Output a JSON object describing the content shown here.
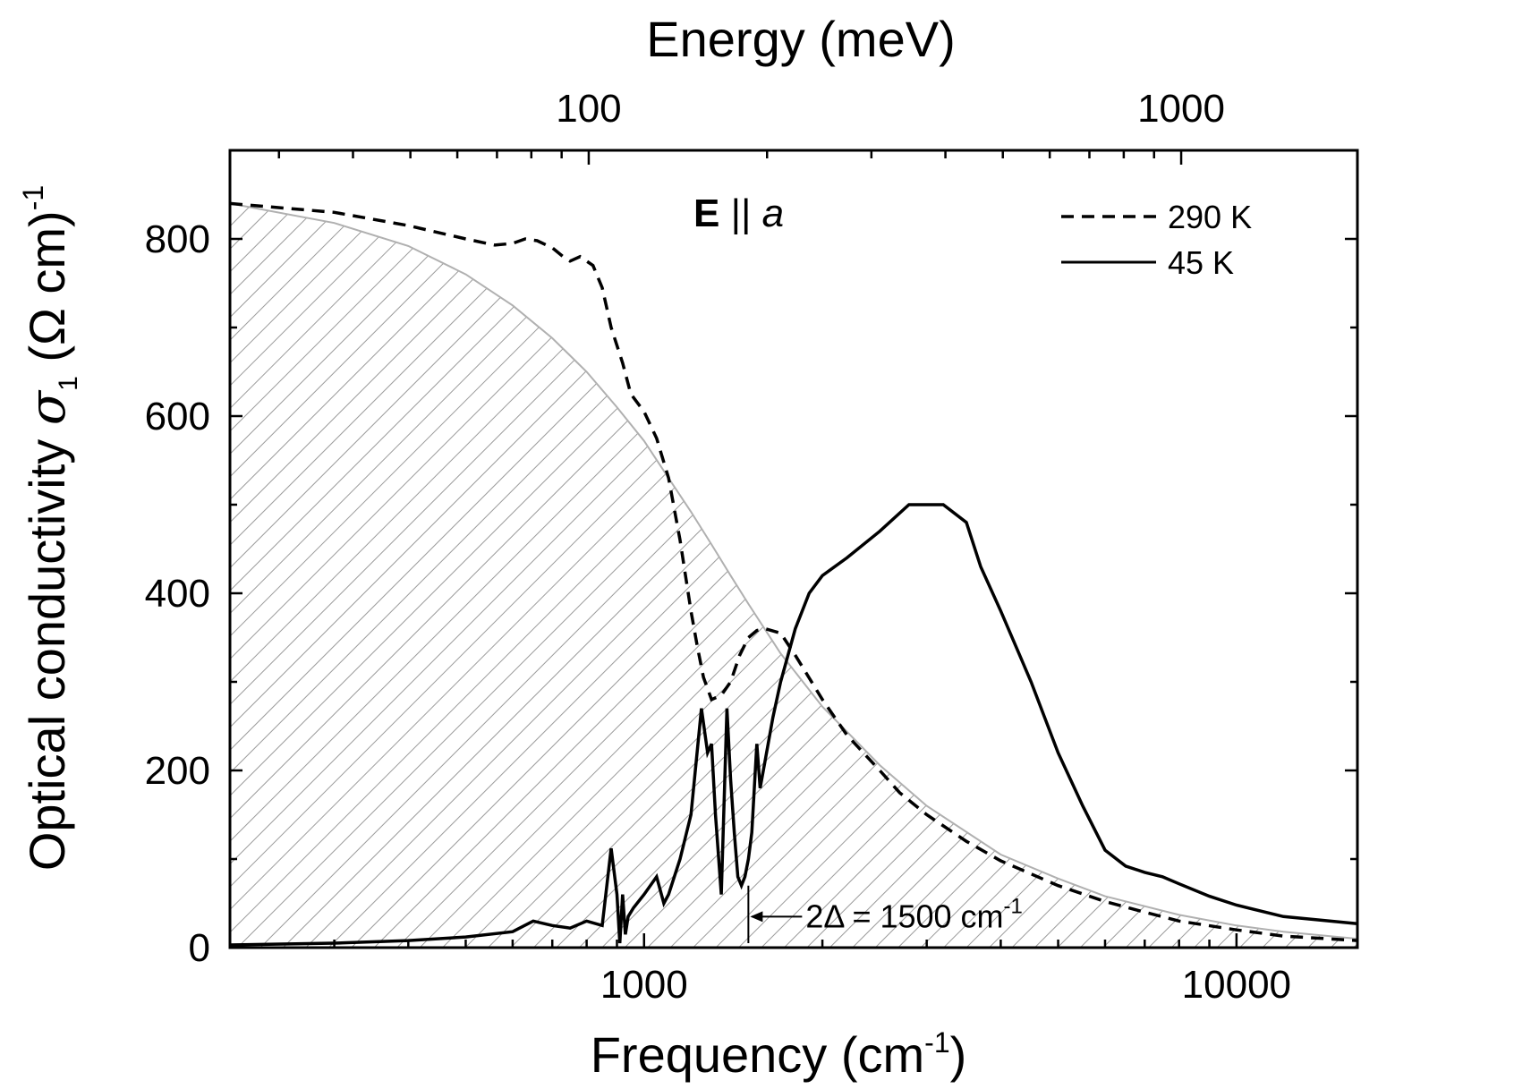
{
  "chart_data": {
    "type": "line",
    "title": "",
    "xlabel": "Frequency (cm",
    "xlabel_sup": "-1",
    "xlabel_close": ")",
    "x2label": "Energy (meV)",
    "ylabel": "Optical conductivity",
    "ylabel_symbol": "σ",
    "ylabel_sub": "1",
    "ylabel_units": "(Ω cm)",
    "ylabel_sup": "-1",
    "xscale": "log",
    "x2scale": "log",
    "xlim": [
      200,
      16000
    ],
    "ylim": [
      0,
      900
    ],
    "grid": false,
    "x_ticks": [
      {
        "value": 1000,
        "label": "1000"
      },
      {
        "value": 10000,
        "label": "10000"
      }
    ],
    "x2_ticks": [
      {
        "value": 100,
        "label": "100"
      },
      {
        "value": 1000,
        "label": "1000"
      }
    ],
    "y_ticks": [
      {
        "value": 0,
        "label": "0"
      },
      {
        "value": 200,
        "label": "200"
      },
      {
        "value": 400,
        "label": "400"
      },
      {
        "value": 600,
        "label": "600"
      },
      {
        "value": 800,
        "label": "800"
      }
    ],
    "panel_label": {
      "bold": "E",
      "sep": " || ",
      "italic": "a"
    },
    "legend": {
      "placement": "top-right",
      "entries": [
        {
          "label": "290 K",
          "style": "dashed"
        },
        {
          "label": "45 K",
          "style": "solid"
        }
      ]
    },
    "annotation": {
      "text": "2Δ = 1500 cm",
      "sup": "-1",
      "x": 1500
    },
    "series": [
      {
        "name": "290 K",
        "style": "dashed",
        "x": [
          200,
          300,
          400,
          500,
          560,
          600,
          630,
          660,
          700,
          730,
          750,
          780,
          820,
          850,
          880,
          920,
          950,
          1000,
          1050,
          1100,
          1150,
          1200,
          1230,
          1260,
          1300,
          1350,
          1400,
          1450,
          1500,
          1550,
          1600,
          1700,
          1800,
          2000,
          2200,
          2500,
          2700,
          3000,
          3500,
          4000,
          5000,
          6000,
          7000,
          8000,
          10000,
          12000,
          16000
        ],
        "values": [
          840,
          830,
          815,
          800,
          793,
          795,
          800,
          798,
          790,
          780,
          775,
          780,
          770,
          745,
          700,
          660,
          625,
          605,
          575,
          530,
          460,
          380,
          340,
          305,
          280,
          285,
          300,
          330,
          350,
          358,
          360,
          355,
          330,
          280,
          240,
          200,
          175,
          150,
          120,
          98,
          70,
          52,
          40,
          30,
          20,
          13,
          8
        ]
      },
      {
        "name": "45 K",
        "style": "solid",
        "x": [
          200,
          300,
          400,
          500,
          600,
          650,
          700,
          750,
          800,
          850,
          880,
          900,
          910,
          920,
          930,
          940,
          950,
          960,
          1000,
          1050,
          1080,
          1100,
          1150,
          1200,
          1250,
          1280,
          1300,
          1320,
          1350,
          1380,
          1400,
          1420,
          1440,
          1460,
          1480,
          1500,
          1520,
          1550,
          1570,
          1600,
          1650,
          1700,
          1800,
          1900,
          2000,
          2200,
          2500,
          2800,
          3000,
          3200,
          3500,
          3700,
          4000,
          4500,
          5000,
          5500,
          6000,
          6500,
          7000,
          7500,
          8000,
          9000,
          10000,
          12000,
          16000
        ],
        "values": [
          3,
          5,
          8,
          12,
          18,
          30,
          25,
          22,
          30,
          25,
          112,
          60,
          5,
          60,
          15,
          35,
          40,
          45,
          60,
          80,
          50,
          60,
          100,
          150,
          270,
          220,
          230,
          150,
          60,
          270,
          190,
          130,
          80,
          70,
          80,
          100,
          130,
          230,
          180,
          210,
          260,
          300,
          360,
          400,
          420,
          440,
          470,
          500,
          500,
          500,
          480,
          430,
          380,
          300,
          220,
          160,
          110,
          92,
          85,
          80,
          72,
          58,
          48,
          35,
          27
        ]
      },
      {
        "name": "",
        "style": "hatched-area",
        "x": [
          200,
          300,
          400,
          500,
          600,
          700,
          800,
          900,
          1000,
          1100,
          1200,
          1300,
          1400,
          1500,
          1700,
          2000,
          2500,
          3000,
          4000,
          5000,
          6000,
          8000,
          10000,
          12000,
          16000
        ],
        "values": [
          840,
          818,
          792,
          760,
          725,
          688,
          650,
          610,
          572,
          530,
          492,
          455,
          420,
          388,
          332,
          272,
          206,
          160,
          105,
          78,
          58,
          37,
          25,
          18,
          10
        ]
      }
    ]
  }
}
